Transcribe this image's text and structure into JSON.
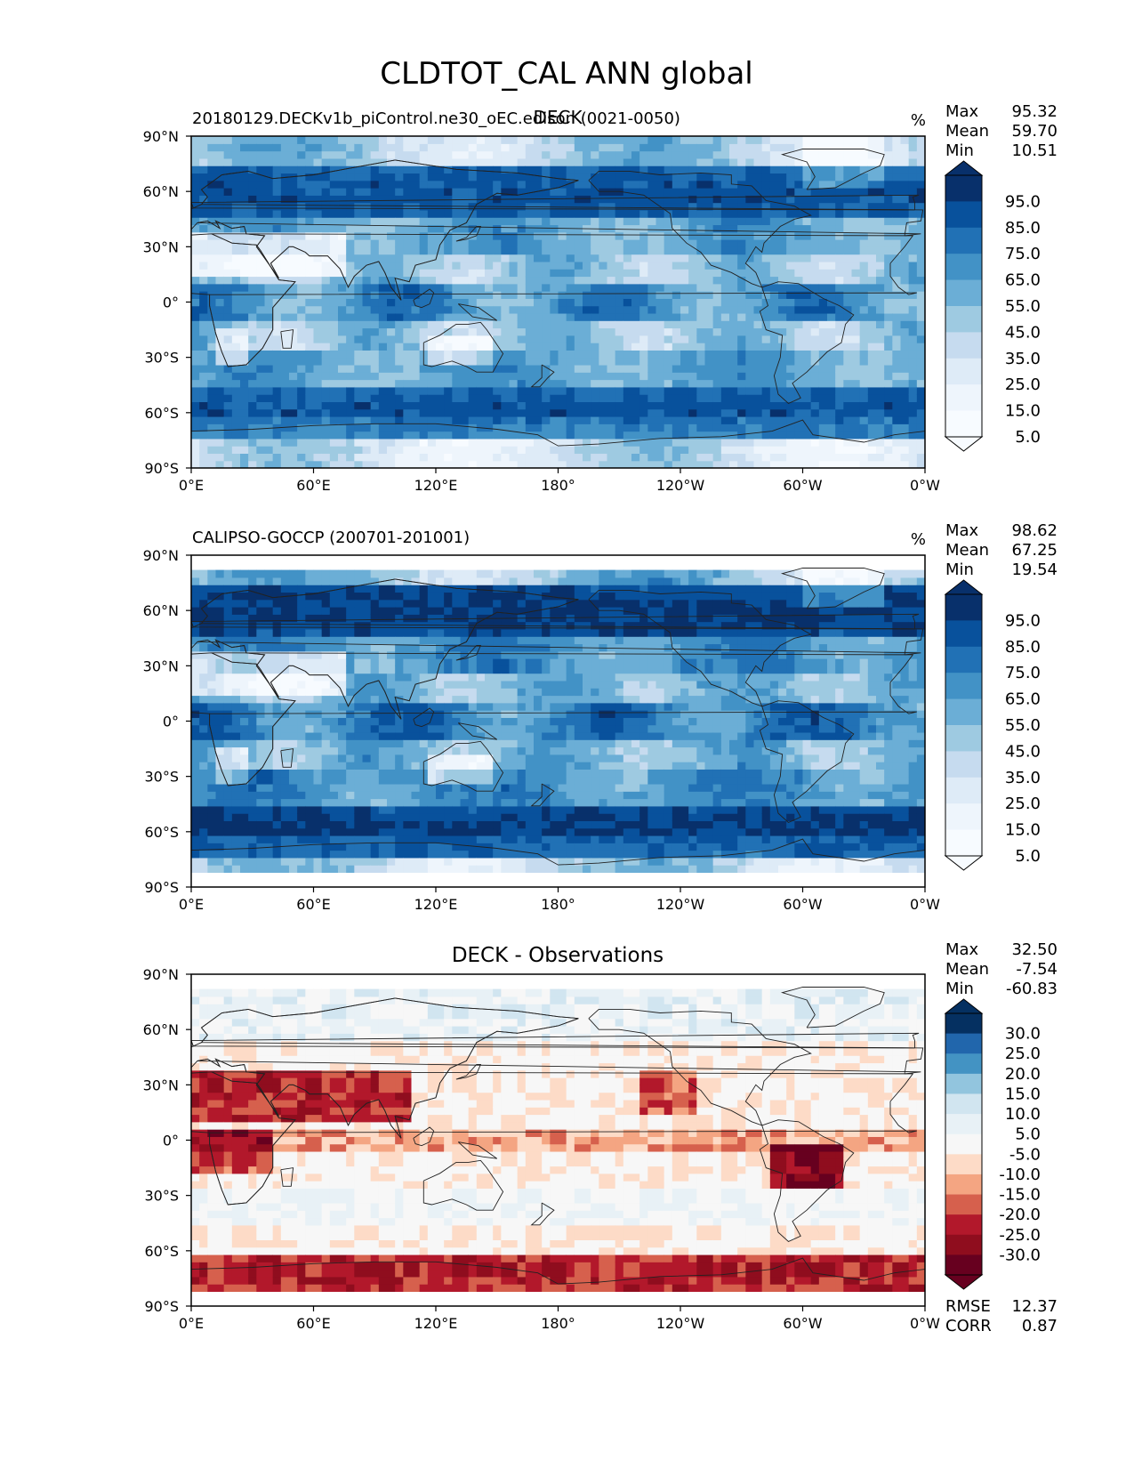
{
  "figure": {
    "title": "CLDTOT_CAL ANN global"
  },
  "chart_data": [
    {
      "type": "heatmap",
      "title": "DECK",
      "subtitle": "20180129.DECKv1b_piControl.ne30_oEC.edison (0021-0050)",
      "units": "%",
      "stats": [
        {
          "label": "Max",
          "value": "95.32"
        },
        {
          "label": "Mean",
          "value": "59.70"
        },
        {
          "label": "Min",
          "value": "10.51"
        }
      ],
      "x_ticks": [
        "0°E",
        "60°E",
        "120°E",
        "180°",
        "120°W",
        "60°W",
        "0°W"
      ],
      "y_ticks": [
        "90°N",
        "60°N",
        "30°N",
        "0°",
        "30°S",
        "60°S",
        "90°S"
      ],
      "xlim": [
        0,
        360
      ],
      "ylim": [
        -90,
        90
      ],
      "colorbar": {
        "labels": [
          "95.0",
          "85.0",
          "75.0",
          "65.0",
          "55.0",
          "45.0",
          "35.0",
          "25.0",
          "15.0",
          "5.0"
        ],
        "colors": [
          "#08306b",
          "#08519c",
          "#2171b5",
          "#4292c6",
          "#6baed6",
          "#9ecae1",
          "#c6dbef",
          "#deebf7",
          "#eef5fc",
          "#f7fbff"
        ],
        "extend": "both"
      }
    },
    {
      "type": "heatmap",
      "title": "",
      "subtitle": "CALIPSO-GOCCP (200701-201001)",
      "units": "%",
      "stats": [
        {
          "label": "Max",
          "value": "98.62"
        },
        {
          "label": "Mean",
          "value": "67.25"
        },
        {
          "label": "Min",
          "value": "19.54"
        }
      ],
      "x_ticks": [
        "0°E",
        "60°E",
        "120°E",
        "180°",
        "120°W",
        "60°W",
        "0°W"
      ],
      "y_ticks": [
        "90°N",
        "60°N",
        "30°N",
        "0°",
        "30°S",
        "60°S",
        "90°S"
      ],
      "xlim": [
        0,
        360
      ],
      "ylim": [
        -90,
        90
      ],
      "data_lat_range": [
        -82,
        82
      ],
      "colorbar": {
        "labels": [
          "95.0",
          "85.0",
          "75.0",
          "65.0",
          "55.0",
          "45.0",
          "35.0",
          "25.0",
          "15.0",
          "5.0"
        ],
        "colors": [
          "#08306b",
          "#08519c",
          "#2171b5",
          "#4292c6",
          "#6baed6",
          "#9ecae1",
          "#c6dbef",
          "#deebf7",
          "#eef5fc",
          "#f7fbff"
        ],
        "extend": "both"
      }
    },
    {
      "type": "heatmap",
      "title": "DECK - Observations",
      "subtitle": "",
      "units": "",
      "stats": [
        {
          "label": "Max",
          "value": "32.50"
        },
        {
          "label": "Mean",
          "value": "-7.54"
        },
        {
          "label": "Min",
          "value": "-60.83"
        }
      ],
      "metrics": [
        {
          "label": "RMSE",
          "value": "12.37"
        },
        {
          "label": "CORR",
          "value": "0.87"
        }
      ],
      "x_ticks": [
        "0°E",
        "60°E",
        "120°E",
        "180°",
        "120°W",
        "60°W",
        "0°W"
      ],
      "y_ticks": [
        "90°N",
        "60°N",
        "30°N",
        "0°",
        "30°S",
        "60°S",
        "90°S"
      ],
      "xlim": [
        0,
        360
      ],
      "ylim": [
        -90,
        90
      ],
      "data_lat_range": [
        -82,
        82
      ],
      "colorbar": {
        "labels": [
          "30.0",
          "25.0",
          "20.0",
          "15.0",
          "10.0",
          "5.0",
          "-5.0",
          "-10.0",
          "-15.0",
          "-20.0",
          "-25.0",
          "-30.0"
        ],
        "colors": [
          "#053061",
          "#2166ac",
          "#4393c3",
          "#92c5de",
          "#d1e5f0",
          "#e8f1f6",
          "#f7f7f7",
          "#fddbc7",
          "#f4a582",
          "#d6604d",
          "#b2182b",
          "#8f0d1e",
          "#67001f"
        ],
        "extend": "both"
      }
    }
  ]
}
